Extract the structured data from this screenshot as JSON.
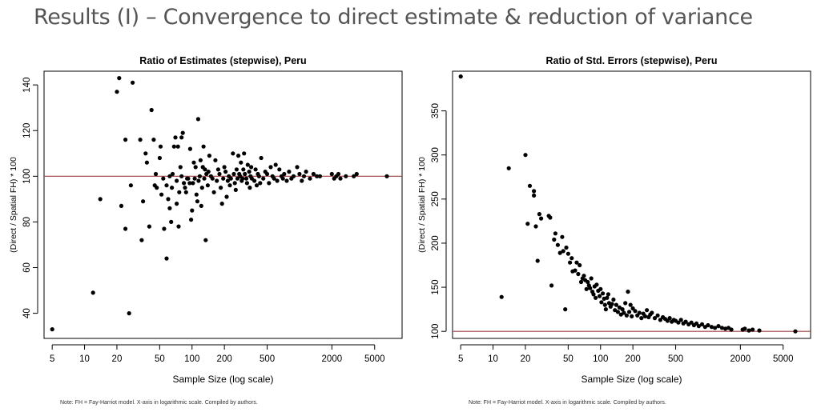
{
  "slide": {
    "title": "Results (I) – Convergence to direct estimate & reduction of variance"
  },
  "chart_data": [
    {
      "type": "scatter",
      "title": "Ratio of Estimates (stepwise), Peru",
      "xlabel": "Sample Size (log scale)",
      "ylabel": "(Direct / Spatial FH) * 100",
      "xscale": "log",
      "xlim": [
        4.2,
        9000
      ],
      "ylim": [
        29,
        146
      ],
      "xticks": [
        5,
        10,
        20,
        50,
        100,
        200,
        500,
        2000,
        5000
      ],
      "xtick_labels": [
        "5",
        "10",
        "20",
        "50",
        "100",
        "200",
        "500",
        "2000",
        "5000"
      ],
      "yticks": [
        40,
        60,
        80,
        100,
        120,
        140
      ],
      "ytick_labels": [
        "40",
        "60",
        "80",
        "100",
        "120",
        "140"
      ],
      "reference_line": 100,
      "reference_color": "#a04040",
      "point_color": "#000000",
      "grid": false,
      "note": "Note: FH = Fay-Harriot model. X-axis in logarithmic scale. Compiled by authors.",
      "points": [
        [
          5,
          33
        ],
        [
          12,
          49
        ],
        [
          14,
          90
        ],
        [
          20,
          137
        ],
        [
          21,
          143
        ],
        [
          22,
          87
        ],
        [
          24,
          116
        ],
        [
          24,
          77
        ],
        [
          26,
          40
        ],
        [
          27,
          96
        ],
        [
          28,
          141
        ],
        [
          33,
          116
        ],
        [
          34,
          72
        ],
        [
          35,
          89
        ],
        [
          37,
          110
        ],
        [
          38,
          106
        ],
        [
          40,
          78
        ],
        [
          42,
          129
        ],
        [
          44,
          116
        ],
        [
          45,
          96
        ],
        [
          46,
          101
        ],
        [
          47,
          95
        ],
        [
          50,
          108
        ],
        [
          51,
          113
        ],
        [
          52,
          92
        ],
        [
          54,
          99
        ],
        [
          55,
          77
        ],
        [
          58,
          64
        ],
        [
          58,
          96
        ],
        [
          60,
          90
        ],
        [
          62,
          100
        ],
        [
          62,
          86
        ],
        [
          64,
          80
        ],
        [
          65,
          95
        ],
        [
          66,
          101
        ],
        [
          68,
          113
        ],
        [
          70,
          117
        ],
        [
          72,
          98
        ],
        [
          72,
          88
        ],
        [
          74,
          113
        ],
        [
          75,
          78
        ],
        [
          76,
          93
        ],
        [
          78,
          104
        ],
        [
          80,
          100
        ],
        [
          80,
          117
        ],
        [
          82,
          119
        ],
        [
          84,
          97
        ],
        [
          86,
          95
        ],
        [
          88,
          93
        ],
        [
          90,
          99
        ],
        [
          92,
          99
        ],
        [
          95,
          97
        ],
        [
          96,
          112
        ],
        [
          98,
          81
        ],
        [
          100,
          85
        ],
        [
          102,
          97
        ],
        [
          104,
          106
        ],
        [
          106,
          99
        ],
        [
          108,
          104
        ],
        [
          110,
          92
        ],
        [
          112,
          89
        ],
        [
          114,
          125
        ],
        [
          115,
          98
        ],
        [
          118,
          100
        ],
        [
          120,
          107
        ],
        [
          122,
          87
        ],
        [
          124,
          95
        ],
        [
          126,
          104
        ],
        [
          128,
          113
        ],
        [
          130,
          99
        ],
        [
          132,
          103
        ],
        [
          134,
          72
        ],
        [
          136,
          101
        ],
        [
          140,
          96
        ],
        [
          142,
          102
        ],
        [
          145,
          109
        ],
        [
          150,
          100
        ],
        [
          155,
          99
        ],
        [
          160,
          93
        ],
        [
          165,
          107
        ],
        [
          170,
          98
        ],
        [
          175,
          103
        ],
        [
          180,
          101
        ],
        [
          185,
          95
        ],
        [
          190,
          88
        ],
        [
          195,
          99
        ],
        [
          200,
          104
        ],
        [
          205,
          102
        ],
        [
          210,
          91
        ],
        [
          215,
          98
        ],
        [
          220,
          100
        ],
        [
          225,
          96
        ],
        [
          230,
          99
        ],
        [
          240,
          110
        ],
        [
          245,
          101
        ],
        [
          250,
          97
        ],
        [
          255,
          94
        ],
        [
          260,
          103
        ],
        [
          265,
          99
        ],
        [
          270,
          109
        ],
        [
          275,
          101
        ],
        [
          280,
          100
        ],
        [
          285,
          106
        ],
        [
          290,
          98
        ],
        [
          295,
          99
        ],
        [
          300,
          103
        ],
        [
          305,
          110
        ],
        [
          310,
          101
        ],
        [
          320,
          99
        ],
        [
          325,
          97
        ],
        [
          330,
          105
        ],
        [
          340,
          102
        ],
        [
          345,
          95
        ],
        [
          350,
          100
        ],
        [
          355,
          104
        ],
        [
          360,
          99
        ],
        [
          380,
          98
        ],
        [
          390,
          103
        ],
        [
          400,
          96
        ],
        [
          410,
          101
        ],
        [
          420,
          100
        ],
        [
          430,
          97
        ],
        [
          440,
          108
        ],
        [
          460,
          99
        ],
        [
          480,
          102
        ],
        [
          500,
          101
        ],
        [
          520,
          97
        ],
        [
          540,
          104
        ],
        [
          560,
          100
        ],
        [
          580,
          99
        ],
        [
          600,
          105
        ],
        [
          620,
          98
        ],
        [
          650,
          103
        ],
        [
          680,
          100
        ],
        [
          700,
          99
        ],
        [
          720,
          101
        ],
        [
          760,
          98
        ],
        [
          800,
          102
        ],
        [
          840,
          99
        ],
        [
          880,
          100
        ],
        [
          950,
          104
        ],
        [
          1000,
          101
        ],
        [
          1050,
          98
        ],
        [
          1100,
          100
        ],
        [
          1150,
          102
        ],
        [
          1250,
          99
        ],
        [
          1350,
          101
        ],
        [
          1450,
          100
        ],
        [
          1550,
          100
        ],
        [
          2000,
          101
        ],
        [
          2100,
          99
        ],
        [
          2200,
          100
        ],
        [
          2300,
          101
        ],
        [
          2400,
          99
        ],
        [
          2700,
          100
        ],
        [
          3200,
          100
        ],
        [
          3400,
          101
        ],
        [
          6500,
          100
        ]
      ]
    },
    {
      "type": "scatter",
      "title": "Ratio of Std. Errors (stepwise), Peru",
      "xlabel": "Sample Size (log scale)",
      "ylabel": "(Direct / Spatial FH) * 100",
      "xscale": "log",
      "xlim": [
        4.2,
        9000
      ],
      "ylim": [
        92,
        395
      ],
      "xticks": [
        5,
        10,
        20,
        50,
        100,
        200,
        500,
        2000,
        5000
      ],
      "xtick_labels": [
        "5",
        "10",
        "20",
        "50",
        "100",
        "200",
        "500",
        "2000",
        "5000"
      ],
      "yticks": [
        100,
        150,
        200,
        250,
        300,
        350
      ],
      "ytick_labels": [
        "100",
        "150",
        "200",
        "250",
        "300",
        "350"
      ],
      "reference_line": 100,
      "reference_color": "#a04040",
      "point_color": "#000000",
      "grid": false,
      "note": "Note: FH = Fay-Harriot model. X-axis in logarithmic scale. Compiled by authors.",
      "points": [
        [
          5,
          389
        ],
        [
          12,
          139
        ],
        [
          14,
          285
        ],
        [
          20,
          300
        ],
        [
          21,
          222
        ],
        [
          22,
          265
        ],
        [
          24,
          259
        ],
        [
          24,
          254
        ],
        [
          25,
          219
        ],
        [
          26,
          180
        ],
        [
          27,
          233
        ],
        [
          28,
          228
        ],
        [
          33,
          231
        ],
        [
          34,
          229
        ],
        [
          35,
          152
        ],
        [
          37,
          204
        ],
        [
          38,
          211
        ],
        [
          40,
          198
        ],
        [
          42,
          189
        ],
        [
          44,
          207
        ],
        [
          45,
          191
        ],
        [
          47,
          125
        ],
        [
          48,
          195
        ],
        [
          50,
          188
        ],
        [
          52,
          178
        ],
        [
          54,
          183
        ],
        [
          55,
          168
        ],
        [
          58,
          169
        ],
        [
          60,
          178
        ],
        [
          62,
          165
        ],
        [
          64,
          175
        ],
        [
          66,
          156
        ],
        [
          68,
          160
        ],
        [
          70,
          163
        ],
        [
          72,
          158
        ],
        [
          74,
          148
        ],
        [
          76,
          156
        ],
        [
          78,
          152
        ],
        [
          80,
          149
        ],
        [
          82,
          160
        ],
        [
          84,
          145
        ],
        [
          86,
          142
        ],
        [
          88,
          151
        ],
        [
          90,
          138
        ],
        [
          92,
          153
        ],
        [
          95,
          146
        ],
        [
          98,
          140
        ],
        [
          100,
          148
        ],
        [
          102,
          133
        ],
        [
          105,
          143
        ],
        [
          108,
          137
        ],
        [
          110,
          130
        ],
        [
          112,
          125
        ],
        [
          115,
          138
        ],
        [
          118,
          142
        ],
        [
          120,
          132
        ],
        [
          124,
          128
        ],
        [
          128,
          131
        ],
        [
          132,
          136
        ],
        [
          136,
          124
        ],
        [
          140,
          130
        ],
        [
          145,
          122
        ],
        [
          150,
          127
        ],
        [
          155,
          119
        ],
        [
          160,
          125
        ],
        [
          165,
          121
        ],
        [
          170,
          132
        ],
        [
          175,
          118
        ],
        [
          180,
          145
        ],
        [
          185,
          122
        ],
        [
          190,
          130
        ],
        [
          195,
          117
        ],
        [
          200,
          126
        ],
        [
          210,
          123
        ],
        [
          220,
          118
        ],
        [
          230,
          121
        ],
        [
          240,
          115
        ],
        [
          250,
          120
        ],
        [
          260,
          117
        ],
        [
          270,
          124
        ],
        [
          280,
          116
        ],
        [
          290,
          119
        ],
        [
          300,
          121
        ],
        [
          320,
          115
        ],
        [
          340,
          118
        ],
        [
          360,
          113
        ],
        [
          380,
          116
        ],
        [
          400,
          114
        ],
        [
          420,
          112
        ],
        [
          440,
          115
        ],
        [
          460,
          111
        ],
        [
          480,
          113
        ],
        [
          500,
          112
        ],
        [
          530,
          110
        ],
        [
          560,
          113
        ],
        [
          590,
          109
        ],
        [
          620,
          111
        ],
        [
          660,
          108
        ],
        [
          700,
          110
        ],
        [
          740,
          107
        ],
        [
          780,
          109
        ],
        [
          820,
          106
        ],
        [
          880,
          108
        ],
        [
          940,
          105
        ],
        [
          1000,
          107
        ],
        [
          1080,
          105
        ],
        [
          1160,
          104
        ],
        [
          1250,
          106
        ],
        [
          1350,
          104
        ],
        [
          1450,
          103
        ],
        [
          1550,
          104
        ],
        [
          1650,
          102
        ],
        [
          2100,
          102
        ],
        [
          2200,
          103
        ],
        [
          2400,
          101
        ],
        [
          2600,
          102
        ],
        [
          3000,
          101
        ],
        [
          6500,
          100
        ]
      ]
    }
  ]
}
